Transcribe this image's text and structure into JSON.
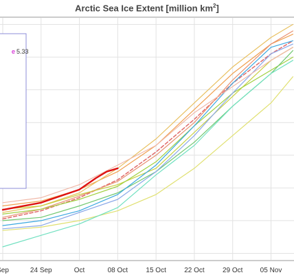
{
  "chart_data": {
    "type": "line",
    "title": "Arctic Sea Ice Extent [million km",
    "title_superscript": "2",
    "title_suffix": "]",
    "x_ticks": [
      "Sep",
      "24 Sep",
      "Oct",
      "08 Oct",
      "15 Oct",
      "22 Oct",
      "29 Oct",
      "05 Nov"
    ],
    "x_tick_positions": [
      0,
      7,
      14,
      21,
      28,
      35,
      42,
      49
    ],
    "xlim": [
      -0.5,
      53.2
    ],
    "ylim": [
      3.8,
      11.2
    ],
    "y_gridlines": [
      4,
      5,
      6,
      7,
      8,
      9,
      10,
      11
    ],
    "grid": true,
    "legend": {
      "placement": "top-left",
      "entries": [
        {
          "label": "e",
          "value": "5.33",
          "label_color": "#cc00cc",
          "value_color": "#333333"
        }
      ]
    },
    "series": [
      {
        "color": "#dd1111",
        "width": 2.4,
        "dash": "",
        "x": [
          0,
          7,
          14,
          17,
          19,
          21
        ],
        "y": [
          5.33,
          5.55,
          5.95,
          6.3,
          6.5,
          6.6
        ]
      },
      {
        "color": "#e06a6a",
        "width": 1.5,
        "dash": "5,3",
        "x": [
          0,
          7,
          14,
          21,
          28,
          35,
          42,
          49,
          53
        ],
        "y": [
          5.05,
          5.3,
          5.7,
          6.25,
          7.1,
          8.1,
          9.2,
          10.1,
          10.5
        ]
      },
      {
        "color": "#f0a050",
        "width": 1.2,
        "dash": "",
        "x": [
          0,
          7,
          14,
          21,
          28,
          35,
          42,
          49,
          53
        ],
        "y": [
          5.45,
          5.6,
          5.95,
          6.5,
          7.3,
          8.4,
          9.5,
          10.4,
          10.7
        ]
      },
      {
        "color": "#e8c060",
        "width": 1.2,
        "dash": "",
        "x": [
          0,
          7,
          14,
          21,
          28,
          35,
          42,
          49,
          53
        ],
        "y": [
          5.25,
          5.45,
          5.85,
          6.6,
          7.5,
          8.6,
          9.7,
          10.6,
          11.0
        ]
      },
      {
        "color": "#e89070",
        "width": 1.2,
        "dash": "",
        "x": [
          0,
          7,
          14,
          21,
          28,
          35,
          42,
          49,
          53
        ],
        "y": [
          5.1,
          5.35,
          5.75,
          6.2,
          7.0,
          8.0,
          9.3,
          10.4,
          10.8
        ]
      },
      {
        "color": "#c8d040",
        "width": 1.2,
        "dash": "",
        "x": [
          0,
          7,
          14,
          21,
          28,
          35,
          42,
          49,
          53
        ],
        "y": [
          5.35,
          5.45,
          5.8,
          6.1,
          6.6,
          7.7,
          8.8,
          9.9,
          10.3
        ]
      },
      {
        "color": "#a0d040",
        "width": 1.2,
        "dash": "",
        "x": [
          0,
          7,
          14,
          21,
          28,
          35,
          42,
          49,
          53
        ],
        "y": [
          5.2,
          5.35,
          5.65,
          6.05,
          6.8,
          7.9,
          8.9,
          9.6,
          10.0
        ]
      },
      {
        "color": "#70c870",
        "width": 1.2,
        "dash": "",
        "x": [
          0,
          7,
          14,
          21,
          28,
          35,
          42,
          49,
          53
        ],
        "y": [
          5.0,
          5.1,
          5.45,
          5.85,
          6.5,
          7.4,
          8.5,
          9.5,
          10.2
        ]
      },
      {
        "color": "#3aa7e0",
        "width": 1.2,
        "dash": "",
        "x": [
          0,
          7,
          14,
          21,
          28,
          35,
          42,
          49,
          53
        ],
        "y": [
          4.85,
          5.0,
          5.3,
          5.8,
          6.7,
          7.9,
          9.2,
          10.3,
          10.5
        ]
      },
      {
        "color": "#8aa8e8",
        "width": 1.2,
        "dash": "",
        "x": [
          0,
          7,
          14,
          21,
          28,
          35,
          42,
          49,
          53
        ],
        "y": [
          4.75,
          4.85,
          5.25,
          5.65,
          6.5,
          7.6,
          8.9,
          10.1,
          10.4
        ]
      },
      {
        "color": "#e0e070",
        "width": 1.2,
        "dash": "",
        "x": [
          0,
          7,
          14,
          21,
          28,
          35,
          42,
          49,
          53
        ],
        "y": [
          4.7,
          4.8,
          5.0,
          5.3,
          5.8,
          6.6,
          7.6,
          8.6,
          9.4
        ]
      },
      {
        "color": "#70e0c0",
        "width": 1.2,
        "dash": "",
        "x": [
          0,
          7,
          14,
          21,
          28,
          35,
          42,
          49,
          53
        ],
        "y": [
          4.2,
          4.55,
          4.9,
          5.4,
          6.4,
          7.3,
          8.5,
          9.5,
          9.9
        ]
      },
      {
        "color": "#f0b8a8",
        "width": 1.2,
        "dash": "",
        "x": [
          0,
          7,
          14,
          21,
          28,
          35,
          42,
          49,
          53
        ],
        "y": [
          5.55,
          5.7,
          6.1,
          6.7,
          7.3,
          8.3,
          9.1,
          9.9,
          10.3
        ]
      }
    ]
  }
}
